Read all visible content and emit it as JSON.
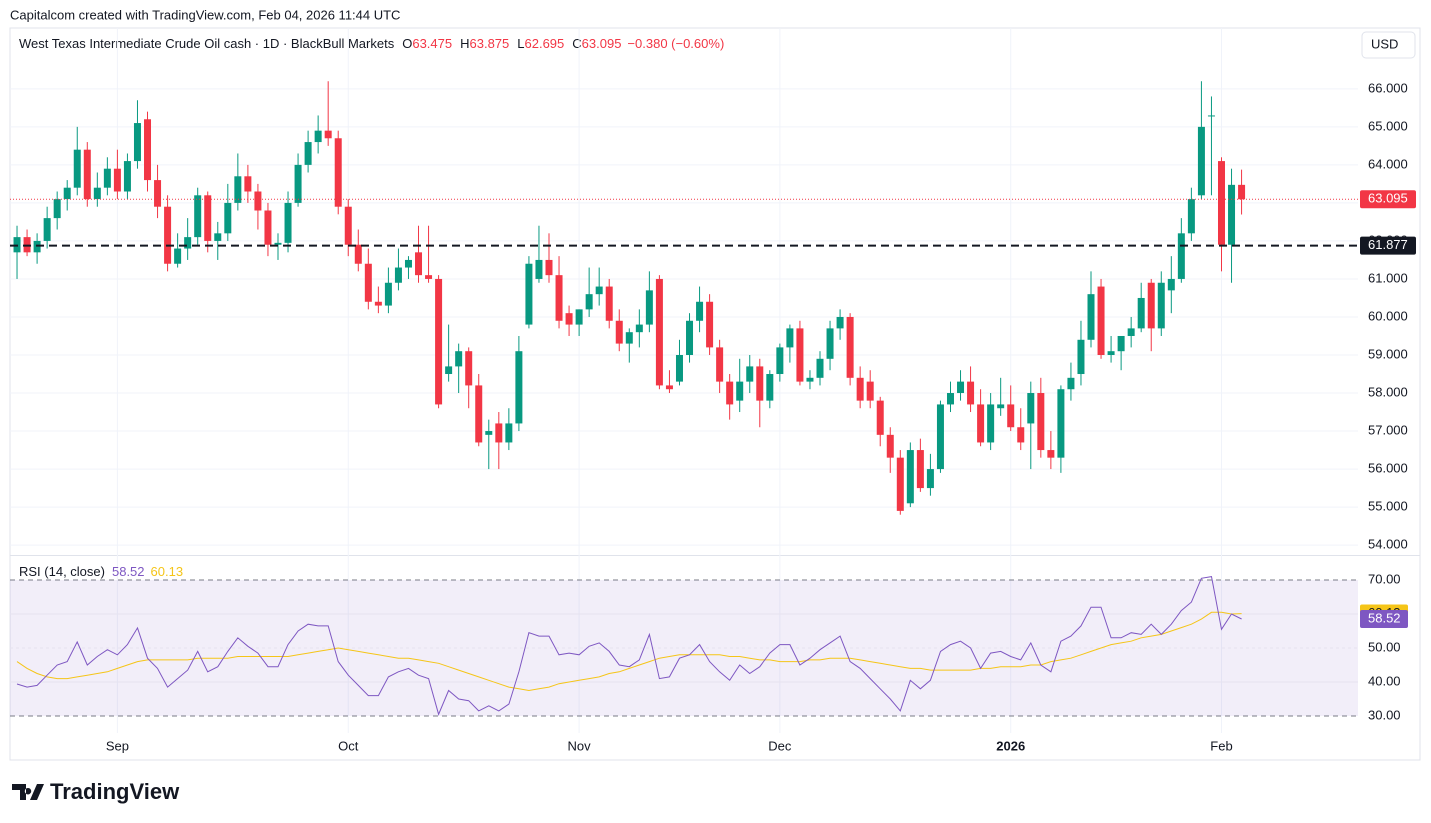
{
  "chart_data": {
    "type": "candlestick",
    "attribution": "Capitalcom created with TradingView.com, Feb 04, 2026 11:44 UTC",
    "title": "West Texas Intermediate Crude Oil cash · 1D · BlackBull Markets",
    "ohlc_letters": [
      "O",
      "H",
      "L",
      "C"
    ],
    "change_label": "−0.380 (−0.60%)",
    "currency": "USD",
    "brand": "TradingView",
    "up_color": "#089981",
    "down_color": "#f23645",
    "grid": true,
    "xlim": [
      -0.7,
      133.6
    ],
    "xticks": [
      {
        "value": 10,
        "label": "Sep"
      },
      {
        "value": 33,
        "label": "Oct"
      },
      {
        "value": 56,
        "label": "Nov"
      },
      {
        "value": 76,
        "label": "Dec"
      },
      {
        "value": 99,
        "label": "2026"
      },
      {
        "value": 120,
        "label": "Feb"
      }
    ],
    "ylim": [
      53.74,
      67.6
    ],
    "yticks": [
      {
        "value": 54,
        "label": "54.000"
      },
      {
        "value": 55,
        "label": "55.000"
      },
      {
        "value": 56,
        "label": "56.000"
      },
      {
        "value": 57,
        "label": "57.000"
      },
      {
        "value": 58,
        "label": "58.000"
      },
      {
        "value": 59,
        "label": "59.000"
      },
      {
        "value": 60,
        "label": "60.000"
      },
      {
        "value": 61,
        "label": "61.000"
      },
      {
        "value": 62,
        "label": "62.000"
      },
      {
        "value": 63,
        "label": "63.000"
      },
      {
        "value": 64,
        "label": "64.000"
      },
      {
        "value": 65,
        "label": "65.000"
      },
      {
        "value": 66,
        "label": "66.000"
      }
    ],
    "level": 61.877,
    "level_color": "#131722",
    "candles": [
      [
        61.7,
        62.4,
        61.0,
        62.1
      ],
      [
        62.1,
        62.3,
        61.6,
        61.7
      ],
      [
        61.7,
        62.2,
        61.4,
        62.0
      ],
      [
        62.0,
        62.9,
        61.8,
        62.6
      ],
      [
        62.6,
        63.3,
        62.3,
        63.1
      ],
      [
        63.1,
        63.6,
        62.8,
        63.4
      ],
      [
        63.4,
        65.0,
        63.2,
        64.4
      ],
      [
        64.4,
        64.6,
        62.9,
        63.1
      ],
      [
        63.1,
        63.8,
        62.9,
        63.4
      ],
      [
        63.4,
        64.2,
        63.2,
        63.9
      ],
      [
        63.9,
        64.4,
        63.1,
        63.3
      ],
      [
        63.3,
        64.3,
        63.1,
        64.1
      ],
      [
        64.1,
        65.7,
        63.9,
        65.1
      ],
      [
        65.2,
        65.4,
        63.3,
        63.6
      ],
      [
        63.6,
        64.0,
        62.6,
        62.9
      ],
      [
        62.9,
        63.2,
        61.2,
        61.4
      ],
      [
        61.4,
        62.2,
        61.3,
        61.8
      ],
      [
        61.8,
        62.6,
        61.5,
        62.1
      ],
      [
        62.1,
        63.4,
        61.9,
        63.2
      ],
      [
        63.2,
        63.3,
        61.7,
        62.0
      ],
      [
        62.0,
        62.5,
        61.5,
        62.2
      ],
      [
        62.2,
        63.5,
        62.0,
        63.0
      ],
      [
        63.0,
        64.3,
        62.8,
        63.7
      ],
      [
        63.7,
        64.0,
        63.0,
        63.3
      ],
      [
        63.3,
        63.5,
        62.3,
        62.8
      ],
      [
        62.8,
        63.0,
        61.6,
        61.9
      ],
      [
        61.9,
        62.2,
        61.5,
        61.95
      ],
      [
        61.95,
        63.3,
        61.7,
        63.0
      ],
      [
        63.0,
        64.3,
        62.9,
        64.0
      ],
      [
        64.0,
        64.9,
        63.8,
        64.6
      ],
      [
        64.6,
        65.3,
        64.3,
        64.9
      ],
      [
        64.9,
        66.2,
        64.5,
        64.7
      ],
      [
        64.7,
        64.9,
        62.7,
        62.9
      ],
      [
        62.9,
        63.1,
        61.6,
        61.9
      ],
      [
        61.9,
        62.3,
        61.2,
        61.4
      ],
      [
        61.4,
        61.8,
        60.2,
        60.4
      ],
      [
        60.4,
        60.8,
        60.1,
        60.3
      ],
      [
        60.3,
        61.3,
        60.1,
        60.9
      ],
      [
        60.9,
        61.8,
        60.7,
        61.3
      ],
      [
        61.3,
        61.6,
        61.0,
        61.5
      ],
      [
        61.7,
        62.4,
        60.9,
        61.1
      ],
      [
        61.1,
        62.4,
        60.9,
        61.0
      ],
      [
        61.0,
        61.1,
        57.6,
        57.7
      ],
      [
        58.5,
        59.8,
        58.3,
        58.7
      ],
      [
        58.7,
        59.3,
        58.0,
        59.1
      ],
      [
        59.1,
        59.2,
        57.6,
        58.2
      ],
      [
        58.2,
        58.5,
        56.6,
        56.7
      ],
      [
        56.9,
        57.3,
        56.0,
        57.0
      ],
      [
        57.2,
        57.5,
        56.0,
        56.7
      ],
      [
        56.7,
        57.6,
        56.5,
        57.2
      ],
      [
        57.2,
        59.5,
        57.0,
        59.1
      ],
      [
        59.8,
        61.6,
        59.7,
        61.4
      ],
      [
        61.0,
        62.4,
        60.9,
        61.5
      ],
      [
        61.5,
        62.2,
        60.9,
        61.1
      ],
      [
        61.1,
        61.6,
        59.7,
        59.9
      ],
      [
        60.1,
        60.3,
        59.5,
        59.8
      ],
      [
        59.8,
        60.2,
        59.5,
        60.2
      ],
      [
        60.2,
        61.3,
        60.0,
        60.6
      ],
      [
        60.6,
        61.3,
        60.3,
        60.8
      ],
      [
        60.8,
        61.0,
        59.7,
        59.9
      ],
      [
        59.9,
        60.2,
        59.1,
        59.3
      ],
      [
        59.3,
        59.7,
        58.8,
        59.6
      ],
      [
        59.6,
        60.2,
        59.2,
        59.8
      ],
      [
        59.8,
        61.2,
        59.6,
        60.7
      ],
      [
        61.0,
        61.1,
        58.1,
        58.2
      ],
      [
        58.2,
        58.6,
        58.0,
        58.1
      ],
      [
        58.3,
        59.4,
        58.2,
        59.0
      ],
      [
        59.0,
        60.1,
        58.8,
        59.9
      ],
      [
        59.9,
        60.8,
        59.6,
        60.4
      ],
      [
        60.4,
        60.6,
        59.0,
        59.2
      ],
      [
        59.2,
        59.4,
        58.0,
        58.3
      ],
      [
        58.3,
        58.5,
        57.3,
        57.7
      ],
      [
        57.8,
        58.9,
        57.5,
        58.3
      ],
      [
        58.3,
        59.0,
        58.0,
        58.7
      ],
      [
        58.7,
        58.9,
        57.1,
        57.8
      ],
      [
        57.8,
        58.6,
        57.6,
        58.5
      ],
      [
        58.5,
        59.3,
        58.3,
        59.2
      ],
      [
        59.2,
        59.8,
        58.8,
        59.7
      ],
      [
        59.7,
        59.9,
        58.2,
        58.3
      ],
      [
        58.3,
        58.6,
        58.1,
        58.4
      ],
      [
        58.4,
        59.1,
        58.2,
        58.9
      ],
      [
        58.9,
        59.9,
        58.6,
        59.7
      ],
      [
        59.7,
        60.2,
        59.4,
        60.0
      ],
      [
        60.0,
        60.1,
        58.2,
        58.4
      ],
      [
        58.4,
        58.7,
        57.6,
        57.8
      ],
      [
        58.3,
        58.6,
        57.6,
        57.8
      ],
      [
        57.8,
        57.9,
        56.6,
        56.9
      ],
      [
        56.9,
        57.1,
        55.9,
        56.3
      ],
      [
        56.3,
        56.5,
        54.8,
        54.9
      ],
      [
        55.1,
        56.7,
        55.0,
        56.5
      ],
      [
        56.5,
        56.8,
        55.4,
        55.5
      ],
      [
        55.5,
        56.4,
        55.3,
        56.0
      ],
      [
        56.0,
        57.8,
        55.9,
        57.7
      ],
      [
        57.7,
        58.3,
        57.5,
        58.0
      ],
      [
        58.0,
        58.6,
        57.8,
        58.3
      ],
      [
        58.3,
        58.7,
        57.5,
        57.7
      ],
      [
        57.7,
        58.1,
        56.6,
        56.7
      ],
      [
        56.7,
        58.0,
        56.5,
        57.7
      ],
      [
        57.6,
        58.4,
        57.4,
        57.7
      ],
      [
        57.7,
        58.2,
        57.0,
        57.1
      ],
      [
        57.1,
        57.6,
        56.5,
        56.7
      ],
      [
        57.2,
        58.3,
        56.0,
        58.0
      ],
      [
        58.0,
        58.4,
        56.3,
        56.5
      ],
      [
        56.5,
        57.0,
        56.0,
        56.3
      ],
      [
        56.3,
        58.2,
        55.9,
        58.1
      ],
      [
        58.1,
        58.8,
        57.8,
        58.4
      ],
      [
        58.5,
        59.9,
        58.2,
        59.4
      ],
      [
        59.4,
        61.2,
        59.2,
        60.6
      ],
      [
        60.8,
        61.0,
        58.9,
        59.0
      ],
      [
        59.0,
        59.5,
        58.8,
        59.1
      ],
      [
        59.1,
        59.5,
        58.6,
        59.5
      ],
      [
        59.5,
        60.0,
        59.2,
        59.7
      ],
      [
        59.7,
        60.9,
        59.6,
        60.5
      ],
      [
        60.9,
        61.0,
        59.1,
        59.7
      ],
      [
        59.7,
        61.2,
        59.5,
        60.9
      ],
      [
        60.7,
        61.6,
        60.1,
        61.0
      ],
      [
        61.0,
        62.6,
        60.9,
        62.2
      ],
      [
        62.2,
        63.4,
        62.0,
        63.1
      ],
      [
        63.2,
        66.2,
        63.1,
        65.0
      ],
      [
        65.3,
        65.8,
        63.2,
        65.3
      ],
      [
        64.1,
        64.2,
        61.2,
        61.9
      ],
      [
        61.9,
        63.9,
        60.9,
        63.475
      ],
      [
        63.475,
        63.875,
        62.695,
        63.095
      ]
    ],
    "indicator": {
      "name": "RSI (14, close)",
      "ylim": [
        25,
        77.06
      ],
      "yticks": [
        {
          "value": 30,
          "label": "30.00"
        },
        {
          "value": 40,
          "label": "40.00"
        },
        {
          "value": 50,
          "label": "50.00"
        },
        {
          "value": 60,
          "label": "60.00"
        },
        {
          "value": 70,
          "label": "70.00"
        }
      ],
      "band": [
        30,
        70
      ],
      "rsi_color": "#7e57c2",
      "ma_color": "#f5c518",
      "rsi": [
        39.4,
        38.5,
        39,
        42,
        45,
        46,
        51.8,
        45,
        47.5,
        49.5,
        48,
        51,
        55.9,
        47,
        44,
        38.5,
        41,
        43.5,
        49,
        43,
        44.5,
        49,
        53,
        50.5,
        48.5,
        44.5,
        44.5,
        51,
        55,
        57,
        56.5,
        56.5,
        46,
        42,
        39,
        36,
        36,
        41.5,
        43,
        44,
        42,
        41,
        30.5,
        37.5,
        35,
        34.5,
        31.5,
        33,
        31.5,
        33.5,
        43,
        54.5,
        53.5,
        53.5,
        48,
        48.5,
        48,
        50.5,
        51.5,
        49,
        45,
        44.5,
        46.5,
        54,
        41,
        41.5,
        47,
        48,
        51,
        46,
        43,
        40.5,
        45,
        42.5,
        44.5,
        48.5,
        51,
        51,
        45,
        47,
        49.5,
        51.5,
        53.5,
        46,
        44,
        41,
        38,
        35,
        31.5,
        40.5,
        38,
        40.5,
        49,
        51,
        52,
        50,
        44,
        48.5,
        49,
        47.5,
        46.5,
        51.5,
        45,
        43,
        52,
        53.5,
        56.5,
        62,
        62,
        53,
        53,
        54.5,
        54,
        57,
        54,
        57,
        61,
        63.5,
        70.5,
        71,
        55.5,
        60,
        58.52
      ],
      "ma": [
        46,
        44,
        42.5,
        41.5,
        41,
        41,
        41.5,
        42,
        42.5,
        43,
        44,
        45,
        46,
        46.5,
        46.5,
        46.5,
        46.5,
        46.5,
        47,
        47,
        47,
        47,
        47.5,
        47.5,
        47.5,
        47.5,
        47.5,
        47.5,
        48,
        48.5,
        49,
        49.5,
        50,
        49.5,
        49,
        48.5,
        48,
        47.5,
        47,
        47,
        46.5,
        46,
        45.5,
        44.5,
        43.5,
        42.5,
        41.5,
        40.5,
        39.5,
        38.5,
        38,
        37.5,
        38,
        38.5,
        39.5,
        40,
        40.5,
        41,
        41.5,
        42.5,
        43,
        44,
        45,
        46,
        47,
        47.5,
        48,
        48,
        48,
        48,
        48,
        47.5,
        47.5,
        47,
        46.5,
        46.5,
        46,
        46,
        46,
        46.5,
        46.5,
        47,
        47,
        47,
        46.5,
        46,
        45.5,
        45,
        44.5,
        44,
        44,
        43.5,
        43.5,
        43.5,
        43.5,
        43.5,
        44,
        44,
        44.5,
        44.5,
        44.5,
        45,
        45,
        46,
        46.5,
        47,
        48,
        49,
        50,
        51,
        51.5,
        52,
        53,
        53.5,
        54,
        55,
        56,
        57,
        58.5,
        60.5,
        60.5,
        60,
        60.13
      ]
    }
  }
}
